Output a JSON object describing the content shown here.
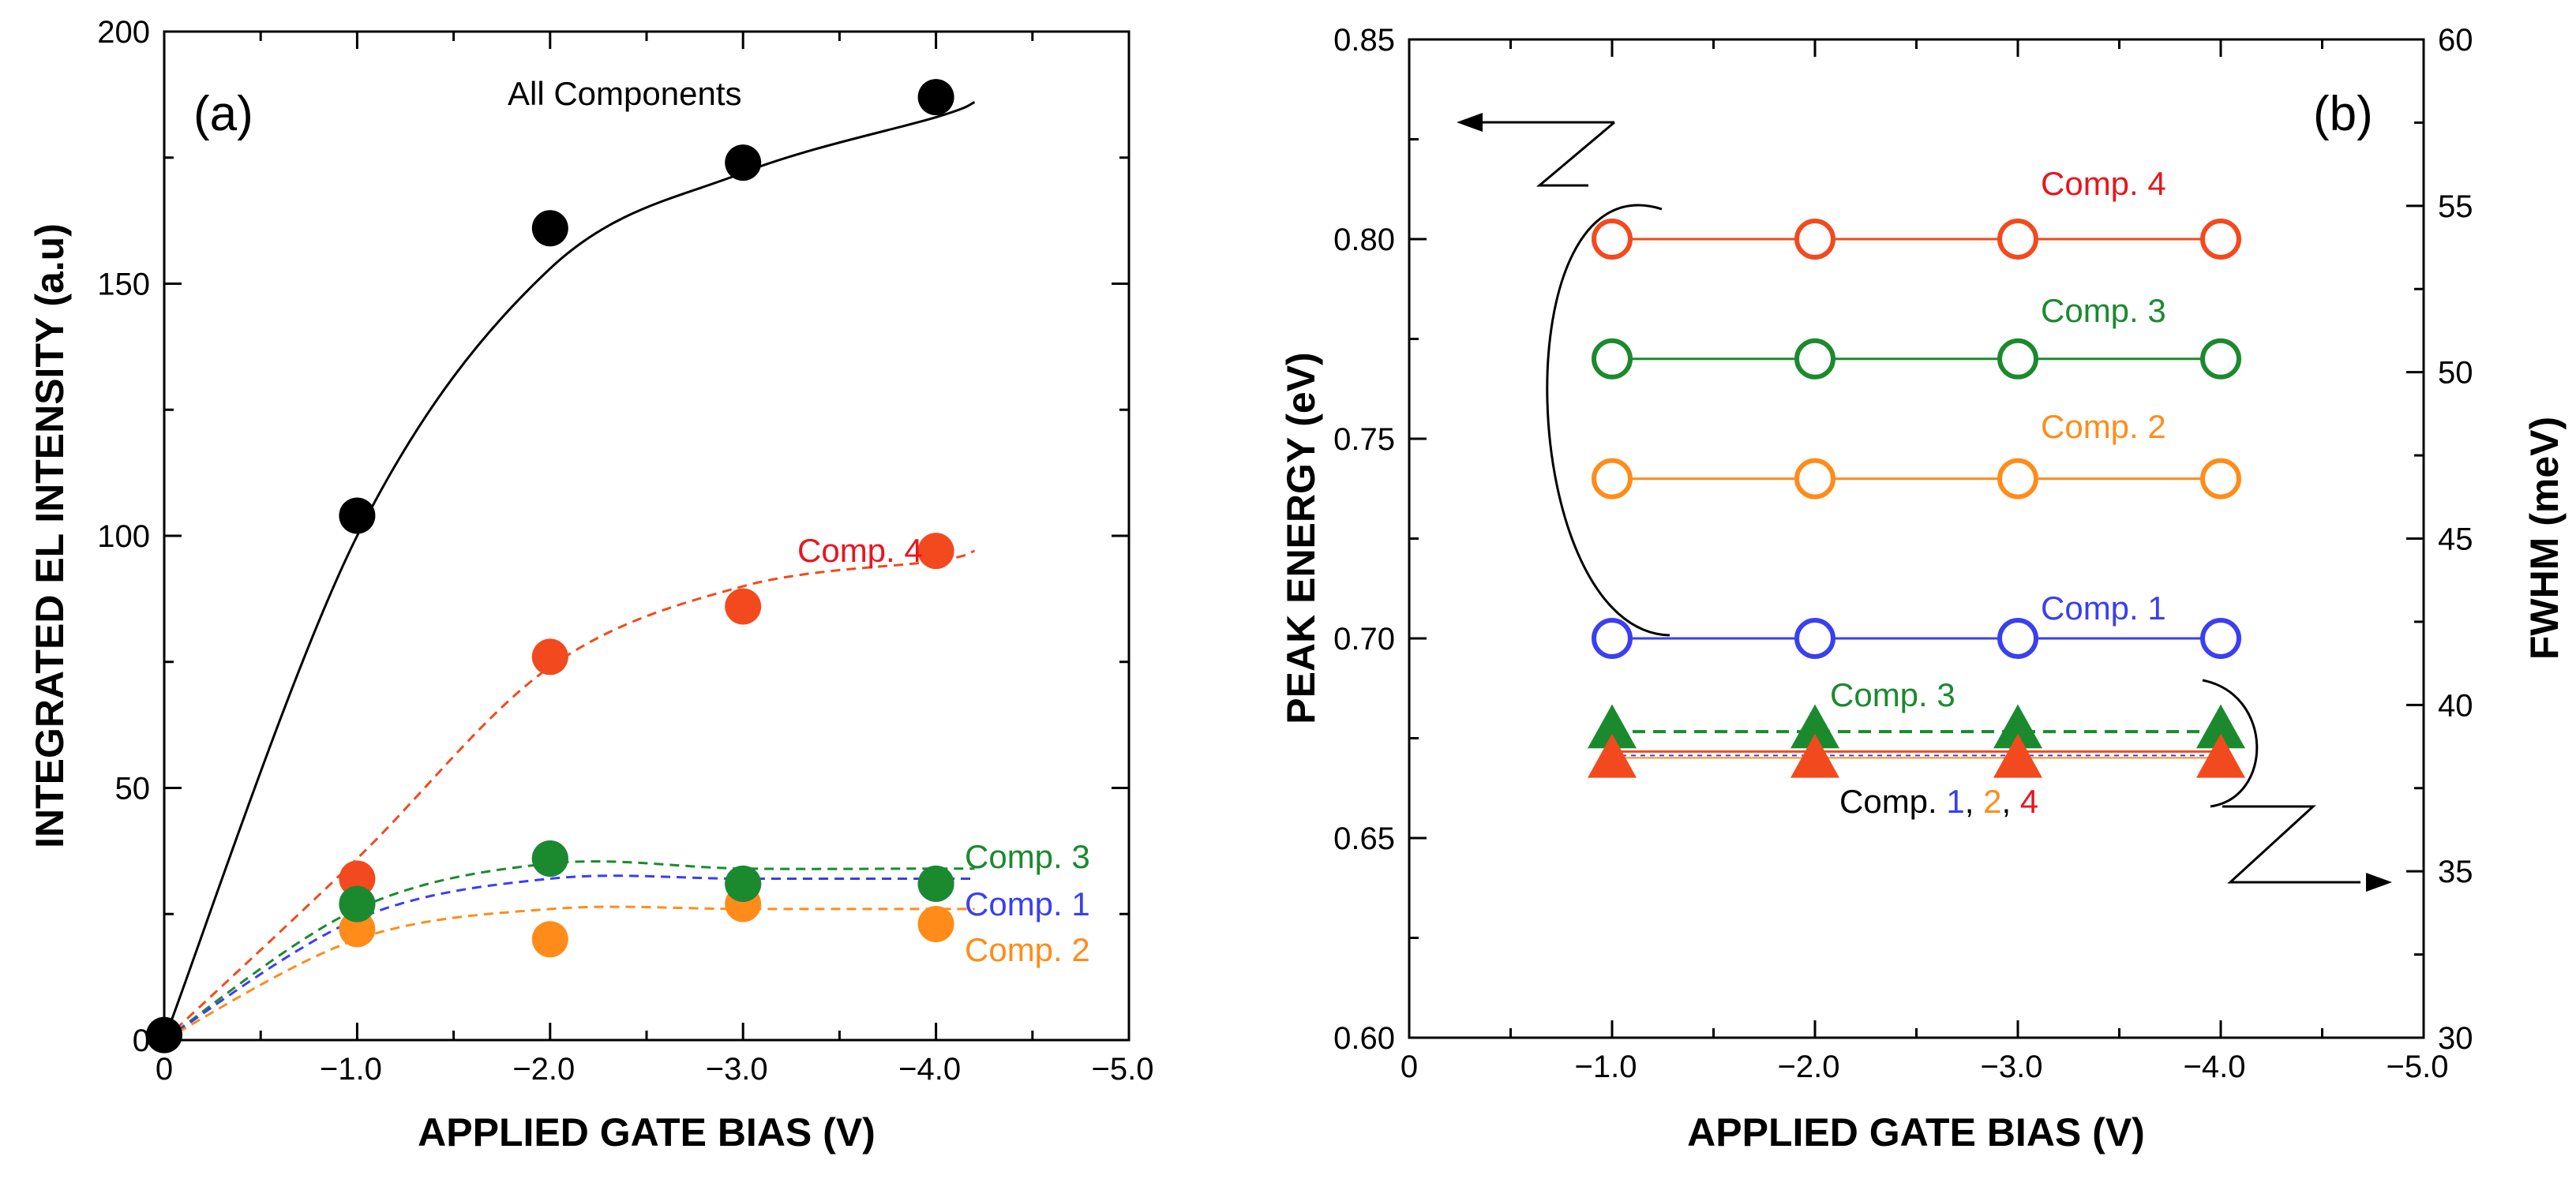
{
  "chart_data": [
    {
      "panel": "(a)",
      "type": "scatter",
      "xlabel": "APPLIED GATE BIAS (V)",
      "ylabel": "INTEGRATED EL INTENSITY (a.u)",
      "xlim": [
        0,
        -5.0
      ],
      "ylim": [
        0,
        200
      ],
      "x_tick_labels": [
        "0",
        "−1.0",
        "−2.0",
        "−3.0",
        "−4.0",
        "−5.0"
      ],
      "y_tick_labels": [
        "0",
        "50",
        "100",
        "150",
        "200"
      ],
      "series": [
        {
          "name": "All Components",
          "color": "#000000",
          "fit": "solid",
          "x": [
            0,
            -1,
            -2,
            -3,
            -4
          ],
          "values": [
            1,
            104,
            161,
            174,
            187
          ],
          "fit_values": [
            0,
            100,
            153,
            172,
            183,
            186
          ]
        },
        {
          "name": "Comp. 4",
          "color": "#f24a1e",
          "label_color": "#e8161f",
          "fit": "dashed",
          "x": [
            -1,
            -2,
            -3,
            -4
          ],
          "values": [
            32,
            76,
            86,
            97
          ],
          "fit_values": [
            0,
            36,
            74,
            90,
            95,
            97
          ]
        },
        {
          "name": "Comp. 3",
          "color": "#1b8a2e",
          "fit": "dashed",
          "x": [
            -1,
            -2,
            -3,
            -4
          ],
          "values": [
            27,
            36,
            31,
            31
          ],
          "fit_values": [
            0,
            26,
            35,
            34,
            34,
            34
          ]
        },
        {
          "name": "Comp. 1",
          "color": "#3a3ff0",
          "fit": "dashed",
          "x": [
            -1,
            -2,
            -3,
            -4
          ],
          "values": [
            27,
            36,
            31,
            31
          ],
          "fit_values": [
            0,
            24,
            32,
            32,
            32,
            32
          ]
        },
        {
          "name": "Comp. 2",
          "color": "#ff8c1a",
          "fit": "dashed",
          "x": [
            -1,
            -2,
            -3,
            -4
          ],
          "values": [
            22,
            20,
            27,
            23
          ],
          "fit_values": [
            0,
            20,
            26,
            26,
            26,
            26
          ]
        }
      ]
    },
    {
      "panel": "(b)",
      "type": "line",
      "xlabel": "APPLIED GATE BIAS (V)",
      "ylabel": "PEAK ENERGY (eV)",
      "ylabel_right": "FWHM (meV)",
      "xlim": [
        0,
        -5.0
      ],
      "ylim": [
        0.6,
        0.85
      ],
      "ylim_right": [
        30,
        60
      ],
      "x_tick_labels": [
        "0",
        "−1.0",
        "−2.0",
        "−3.0",
        "−4.0",
        "−5.0"
      ],
      "y_tick_labels": [
        "0.60",
        "0.65",
        "0.70",
        "0.75",
        "0.80",
        "0.85"
      ],
      "y_right_tick_labels": [
        "30",
        "35",
        "40",
        "45",
        "50",
        "55",
        "60"
      ],
      "peak_energy_series": [
        {
          "name": "Comp. 4",
          "color": "#f24a1e",
          "label_color": "#e8161f",
          "marker": "open-circle",
          "x": [
            -1,
            -2,
            -3,
            -4
          ],
          "values": [
            0.8,
            0.8,
            0.8,
            0.8
          ]
        },
        {
          "name": "Comp. 3",
          "color": "#1b8a2e",
          "marker": "open-circle",
          "x": [
            -1,
            -2,
            -3,
            -4
          ],
          "values": [
            0.77,
            0.77,
            0.77,
            0.77
          ]
        },
        {
          "name": "Comp. 2",
          "color": "#ff8c1a",
          "marker": "open-circle",
          "x": [
            -1,
            -2,
            -3,
            -4
          ],
          "values": [
            0.74,
            0.74,
            0.74,
            0.74
          ]
        },
        {
          "name": "Comp. 1",
          "color": "#3a3ff0",
          "marker": "open-circle",
          "x": [
            -1,
            -2,
            -3,
            -4
          ],
          "values": [
            0.7,
            0.7,
            0.7,
            0.7
          ]
        }
      ],
      "fwhm_series": [
        {
          "name": "Comp. 3",
          "color": "#1b8a2e",
          "marker": "triangle",
          "line": "dashed",
          "x": [
            -1,
            -2,
            -3,
            -4
          ],
          "values": [
            39.2,
            39.2,
            39.2,
            39.2
          ]
        },
        {
          "name": "Comp. 1, 2, 4",
          "color": "#f24a1e",
          "marker": "triangle",
          "line": "solid",
          "x": [
            -1,
            -2,
            -3,
            -4
          ],
          "values": [
            38.6,
            38.6,
            38.6,
            38.6
          ]
        }
      ],
      "fwhm_label": {
        "prefix": "Comp. ",
        "parts": [
          {
            "text": "1",
            "color": "#3a3ff0"
          },
          {
            "text": ", ",
            "color": "#000000"
          },
          {
            "text": "2",
            "color": "#ff8c1a"
          },
          {
            "text": ", ",
            "color": "#000000"
          },
          {
            "text": "4",
            "color": "#e8161f"
          }
        ]
      }
    }
  ],
  "labels": {
    "panel_a": "(a)",
    "panel_b": "(b)",
    "all_components": "All Components",
    "comp4_a": "Comp. 4",
    "comp3_a": "Comp. 3",
    "comp1_a": "Comp. 1",
    "comp2_a": "Comp. 2",
    "comp4_b": "Comp. 4",
    "comp3_b": "Comp. 3",
    "comp2_b": "Comp. 2",
    "comp1_b": "Comp. 1",
    "comp3_fwhm": "Comp. 3",
    "fwhm_prefix": "Comp. ",
    "fwhm_part_1": "1",
    "fwhm_sep_1": ", ",
    "fwhm_part_2": "2",
    "fwhm_sep_2": ", ",
    "fwhm_part_4": "4",
    "xlabel_a": "APPLIED GATE BIAS (V)",
    "ylabel_a": "INTEGRATED EL INTENSITY (a.u)",
    "xlabel_b": "APPLIED GATE BIAS (V)",
    "ylabel_b": "PEAK ENERGY (eV)",
    "ylabel_b_right": "FWHM (meV)"
  }
}
